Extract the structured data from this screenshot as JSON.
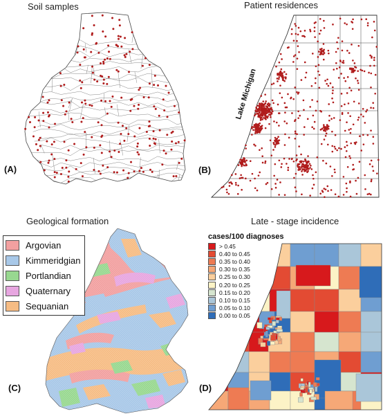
{
  "panels": {
    "a": {
      "title": "Soil samples",
      "label": "(A)"
    },
    "b": {
      "title": "Patient residences",
      "label": "(B)",
      "lake_label": "Lake Michigan"
    },
    "c": {
      "title": "Geological formation",
      "label": "(C)"
    },
    "d": {
      "title": "Late - stage incidence",
      "label": "(D)"
    }
  },
  "geology_legend": [
    {
      "name": "Argovian",
      "color": "#f2a0a0"
    },
    {
      "name": "Kimmeridgian",
      "color": "#a8c8e8"
    },
    {
      "name": "Portlandian",
      "color": "#98d890"
    },
    {
      "name": "Quaternary",
      "color": "#e7a6e0"
    },
    {
      "name": "Sequanian",
      "color": "#f6bc84"
    }
  ],
  "incidence_legend": {
    "title": "cases/100 diagnoses",
    "classes": [
      {
        "label": "> 0.45",
        "color": "#d7191c"
      },
      {
        "label": "0.40 to 0.45",
        "color": "#e34b33"
      },
      {
        "label": "0.35 to 0.40",
        "color": "#ee7b53"
      },
      {
        "label": "0.30 to 0.35",
        "color": "#f6a877"
      },
      {
        "label": "0.25 to 0.30",
        "color": "#fbcf9d"
      },
      {
        "label": "0.20 to 0.25",
        "color": "#fcf3c6"
      },
      {
        "label": "0.15 to 0.20",
        "color": "#d6e5cf"
      },
      {
        "label": "0.10 to 0.15",
        "color": "#aac6d9"
      },
      {
        "label": "0.05 to 0.10",
        "color": "#6f9ed1"
      },
      {
        "label": "0.00 to 0.05",
        "color": "#2f6db8"
      }
    ]
  },
  "colors": {
    "sample_dot": "#b01c1c",
    "outline": "#555555"
  }
}
